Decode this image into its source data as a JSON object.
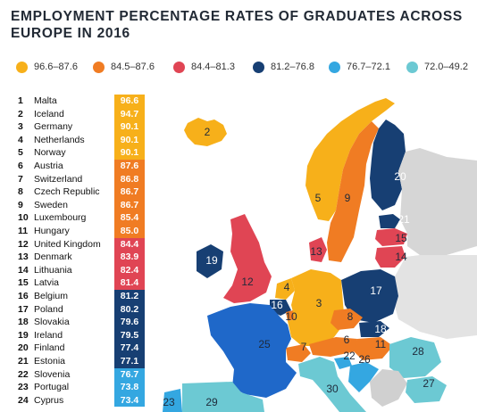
{
  "chart_data": {
    "type": "table",
    "title": "EMPLOYMENT PERCENTAGE RATES OF GRADUATES ACROSS EUROPE IN 2016",
    "legend": [
      {
        "label": "96.6–87.6",
        "color": "#f7b01a"
      },
      {
        "label": "84.5–87.6",
        "color": "#f07c23"
      },
      {
        "label": "84.4–81.3",
        "color": "#e04554"
      },
      {
        "label": "81.2–76.8",
        "color": "#173f73"
      },
      {
        "label": "76.7–72.1",
        "color": "#34a7e1"
      },
      {
        "label": "72.0–49.2",
        "color": "#6cc9d3"
      }
    ],
    "rows": [
      {
        "rank": "1",
        "country": "Malta",
        "value": "96.6",
        "color": "#f7b01a"
      },
      {
        "rank": "2",
        "country": "Iceland",
        "value": "94.7",
        "color": "#f7b01a"
      },
      {
        "rank": "3",
        "country": "Germany",
        "value": "90.1",
        "color": "#f7b01a"
      },
      {
        "rank": "4",
        "country": "Netherlands",
        "value": "90.1",
        "color": "#f7b01a"
      },
      {
        "rank": "5",
        "country": "Norway",
        "value": "90.1",
        "color": "#f7b01a"
      },
      {
        "rank": "6",
        "country": "Austria",
        "value": "87.6",
        "color": "#f07c23"
      },
      {
        "rank": "7",
        "country": "Switzerland",
        "value": "86.8",
        "color": "#f07c23"
      },
      {
        "rank": "8",
        "country": "Czech Republic",
        "value": "86.7",
        "color": "#f07c23"
      },
      {
        "rank": "9",
        "country": "Sweden",
        "value": "86.7",
        "color": "#f07c23"
      },
      {
        "rank": "10",
        "country": "Luxembourg",
        "value": "85.4",
        "color": "#f07c23"
      },
      {
        "rank": "11",
        "country": "Hungary",
        "value": "85.0",
        "color": "#f07c23"
      },
      {
        "rank": "12",
        "country": "United Kingdom",
        "value": "84.4",
        "color": "#e04554"
      },
      {
        "rank": "13",
        "country": "Denmark",
        "value": "83.9",
        "color": "#e04554"
      },
      {
        "rank": "14",
        "country": "Lithuania",
        "value": "82.4",
        "color": "#e04554"
      },
      {
        "rank": "15",
        "country": "Latvia",
        "value": "81.4",
        "color": "#e04554"
      },
      {
        "rank": "16",
        "country": "Belgium",
        "value": "81.2",
        "color": "#173f73"
      },
      {
        "rank": "17",
        "country": "Poland",
        "value": "80.2",
        "color": "#173f73"
      },
      {
        "rank": "18",
        "country": "Slovakia",
        "value": "79.6",
        "color": "#173f73"
      },
      {
        "rank": "19",
        "country": "Ireland",
        "value": "79.5",
        "color": "#173f73"
      },
      {
        "rank": "20",
        "country": "Finland",
        "value": "77.4",
        "color": "#173f73"
      },
      {
        "rank": "21",
        "country": "Estonia",
        "value": "77.1",
        "color": "#173f73"
      },
      {
        "rank": "22",
        "country": "Slovenia",
        "value": "76.7",
        "color": "#34a7e1"
      },
      {
        "rank": "23",
        "country": "Portugal",
        "value": "73.8",
        "color": "#34a7e1"
      },
      {
        "rank": "24",
        "country": "Cyprus",
        "value": "73.4",
        "color": "#34a7e1"
      }
    ],
    "map_labels": [
      {
        "num": "2",
        "color": "#f7b01a"
      },
      {
        "num": "20",
        "color": "#173f73"
      },
      {
        "num": "5",
        "color": "#f7b01a"
      },
      {
        "num": "9",
        "color": "#f07c23"
      },
      {
        "num": "21",
        "color": "#173f73"
      },
      {
        "num": "15",
        "color": "#e04554"
      },
      {
        "num": "14",
        "color": "#e04554"
      },
      {
        "num": "13",
        "color": "#e04554"
      },
      {
        "num": "19",
        "color": "#173f73"
      },
      {
        "num": "12",
        "color": "#e04554"
      },
      {
        "num": "4",
        "color": "#f7b01a"
      },
      {
        "num": "17",
        "color": "#173f73"
      },
      {
        "num": "16",
        "color": "#173f73"
      },
      {
        "num": "10",
        "color": "#f07c23"
      },
      {
        "num": "3",
        "color": "#f7b01a"
      },
      {
        "num": "8",
        "color": "#f07c23"
      },
      {
        "num": "18",
        "color": "#173f73"
      },
      {
        "num": "25",
        "color": "#34a7e1"
      },
      {
        "num": "6",
        "color": "#f07c23"
      },
      {
        "num": "11",
        "color": "#f07c23"
      },
      {
        "num": "7",
        "color": "#f07c23"
      },
      {
        "num": "22",
        "color": "#34a7e1"
      },
      {
        "num": "26",
        "color": "#34a7e1"
      },
      {
        "num": "28",
        "color": "#6cc9d3"
      },
      {
        "num": "27",
        "color": "#6cc9d3"
      },
      {
        "num": "30",
        "color": "#6cc9d3"
      },
      {
        "num": "29",
        "color": "#6cc9d3"
      },
      {
        "num": "23",
        "color": "#34a7e1"
      }
    ]
  }
}
